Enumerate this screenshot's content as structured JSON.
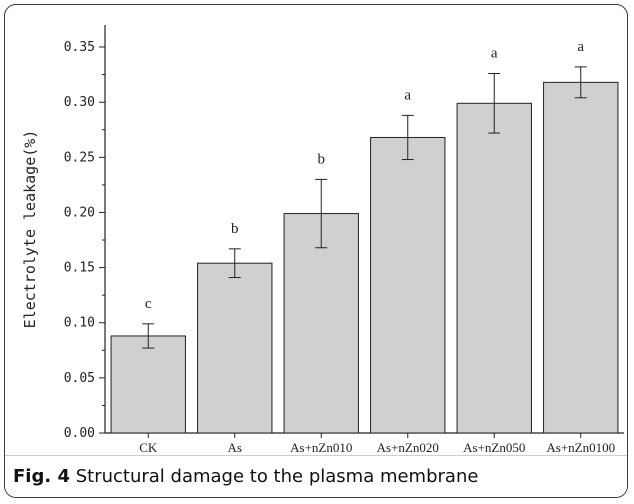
{
  "caption": {
    "figure_label": "Fig. 4",
    "text": "Structural damage to the plasma membrane"
  },
  "chart_data": {
    "type": "bar",
    "title": "",
    "xlabel": "",
    "ylabel": "Electrolyte leakage(%)",
    "ylim": [
      0,
      0.37
    ],
    "yticks": [
      "0.00",
      "0.05",
      "0.10",
      "0.15",
      "0.20",
      "0.25",
      "0.30",
      "0.35"
    ],
    "categories": [
      "CK",
      "As",
      "As+nZn010",
      "As+nZn020",
      "As+nZn050",
      "As+nZn0100"
    ],
    "values": [
      0.088,
      0.154,
      0.199,
      0.268,
      0.299,
      0.318
    ],
    "errors": [
      0.011,
      0.013,
      0.031,
      0.02,
      0.027,
      0.014
    ],
    "labels": [
      "c",
      "b",
      "b",
      "a",
      "a",
      "a"
    ],
    "bar_color": "#d0d0d0",
    "grid": false
  }
}
